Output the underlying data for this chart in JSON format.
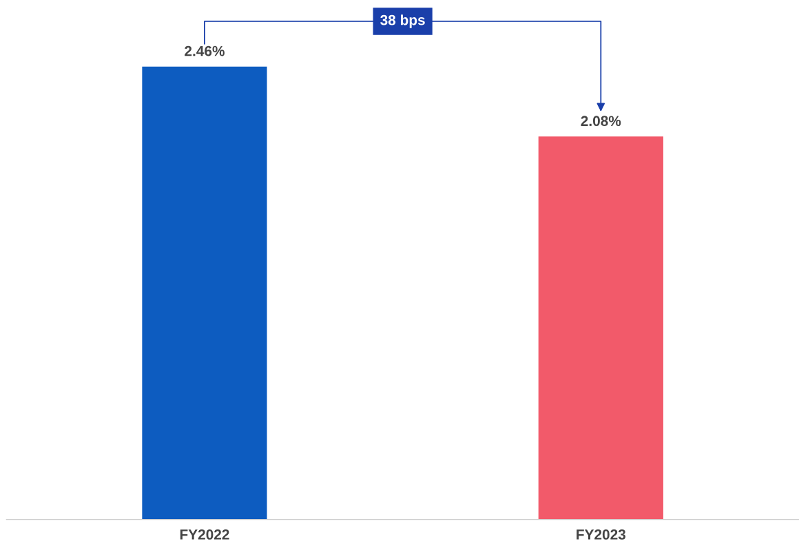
{
  "chart_data": {
    "type": "bar",
    "categories": [
      "FY2022",
      "FY2023"
    ],
    "values": [
      2.46,
      2.08
    ],
    "colors": [
      "#0d5cc0",
      "#f25a6a"
    ],
    "value_labels": [
      "2.46%",
      "2.08%"
    ],
    "annotations": [
      "38 bps"
    ],
    "grid": false,
    "legend": false
  }
}
